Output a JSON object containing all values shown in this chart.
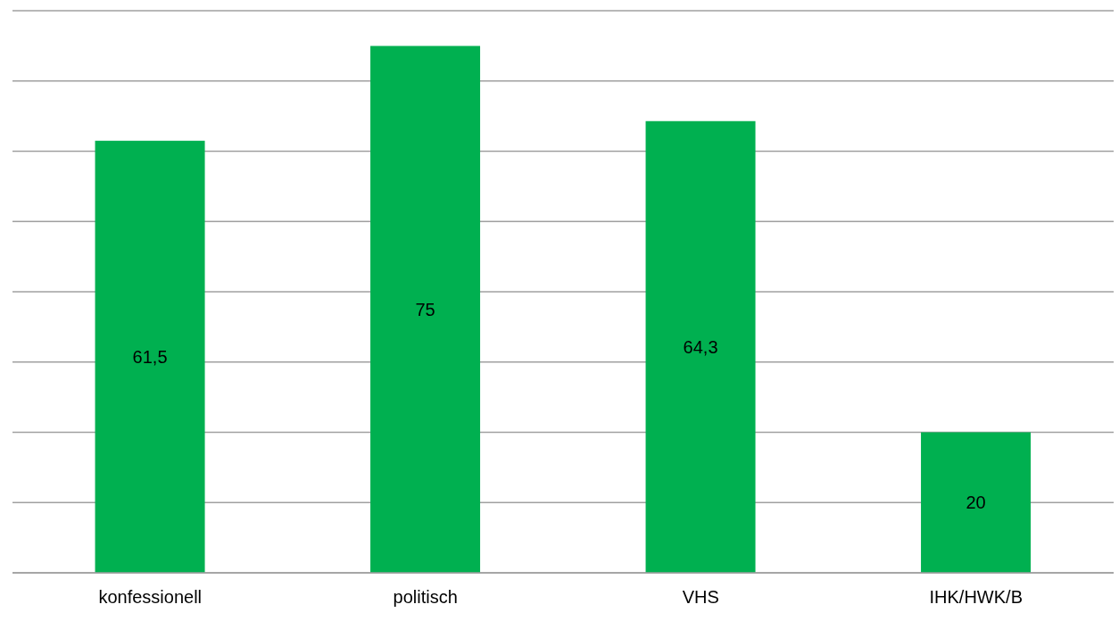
{
  "chart_data": {
    "type": "bar",
    "categories": [
      "konfessionell",
      "politisch",
      "VHS",
      "IHK/HWK/B"
    ],
    "values": [
      61.5,
      75,
      64.3,
      20
    ],
    "color": "#00b050",
    "value_labels": [
      "61,5",
      "75",
      "64,3",
      "20"
    ],
    "ylim": [
      0,
      80
    ],
    "yticks": [
      {
        "value": 0,
        "label": null
      },
      {
        "value": 10,
        "label": null
      },
      {
        "value": 20,
        "label": null
      },
      {
        "value": 30,
        "label": null
      },
      {
        "value": 40,
        "label": null
      },
      {
        "value": 50,
        "label": null
      },
      {
        "value": 60,
        "label": null
      },
      {
        "value": 70,
        "label": null
      },
      {
        "value": 80,
        "label": null
      }
    ],
    "grid": "y",
    "tick_labels": "x",
    "legend": false
  }
}
